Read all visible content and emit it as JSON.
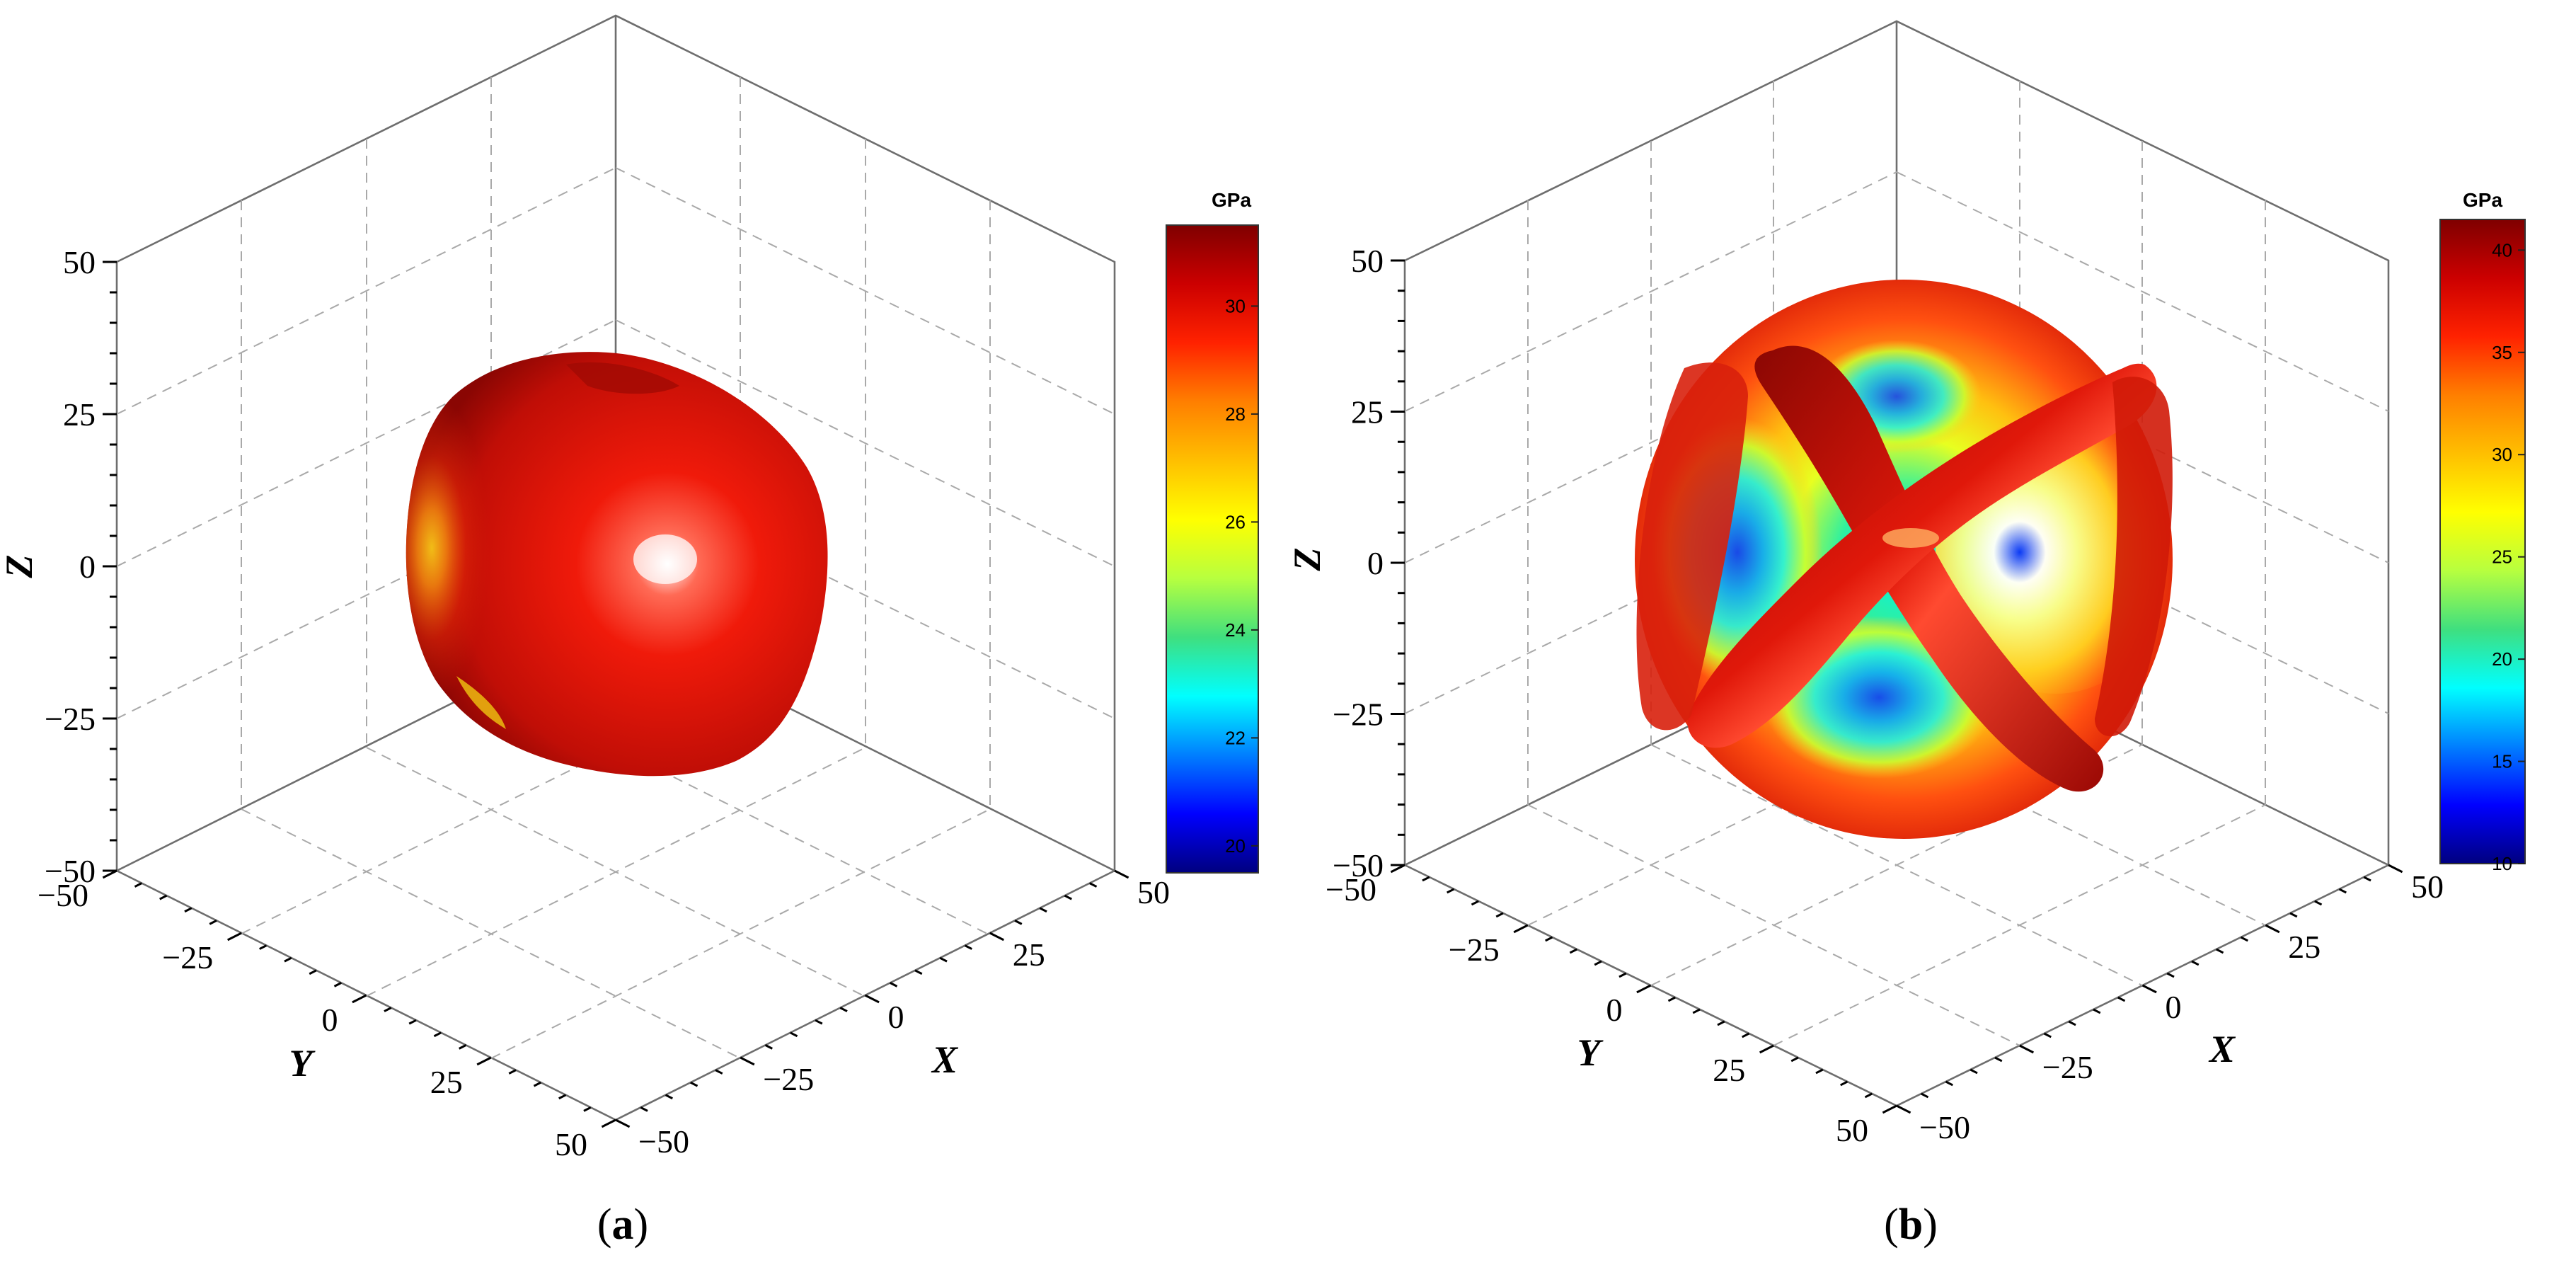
{
  "colors": {
    "colormap": [
      "#00007f",
      "#0000ff",
      "#007fff",
      "#00ffff",
      "#3fdf7f",
      "#b7ff3f",
      "#ffff00",
      "#ffbf00",
      "#ff7f00",
      "#ff2200",
      "#cc0000",
      "#7f0000"
    ],
    "box": "#6e6e6e",
    "grid": "#a9a9a9"
  },
  "chart_data": [
    {
      "type": "surface3d",
      "panel_label": "a",
      "xlabel": "X",
      "ylabel": "Y",
      "zlabel": "Z",
      "xlim": [
        -50,
        50
      ],
      "ylim": [
        -50,
        50
      ],
      "zlim": [
        -50,
        50
      ],
      "ticks": [
        -50,
        -25,
        0,
        25,
        50
      ],
      "tick_labels": [
        "−50",
        "−25",
        "0",
        "25",
        "50"
      ],
      "grid": true,
      "colorbar": {
        "title": "GPa",
        "range": [
          19.5,
          31.5
        ],
        "ticks": [
          20,
          22,
          24,
          26,
          28,
          30
        ],
        "tick_labels": [
          "20",
          "22",
          "24",
          "26",
          "28",
          "30"
        ]
      },
      "surface": {
        "shape": "rounded cube",
        "radius_range": [
          30,
          36
        ],
        "value_range": [
          26,
          31.5
        ]
      }
    },
    {
      "type": "surface3d",
      "panel_label": "b",
      "xlabel": "X",
      "ylabel": "Y",
      "zlabel": "Z",
      "xlim": [
        -50,
        50
      ],
      "ylim": [
        -50,
        50
      ],
      "zlim": [
        -50,
        50
      ],
      "ticks": [
        -50,
        -25,
        0,
        25,
        50
      ],
      "tick_labels": [
        "−50",
        "−25",
        "0",
        "25",
        "50"
      ],
      "grid": true,
      "colorbar": {
        "title": "GPa",
        "range": [
          10,
          41.5
        ],
        "ticks": [
          10,
          15,
          20,
          25,
          30,
          35,
          40
        ],
        "tick_labels": [
          "10",
          "15",
          "20",
          "25",
          "30",
          "35",
          "40"
        ]
      },
      "surface": {
        "shape": "cross-ribbed sphere",
        "radius_range": [
          20,
          42
        ],
        "value_range": [
          12,
          41
        ]
      }
    }
  ]
}
